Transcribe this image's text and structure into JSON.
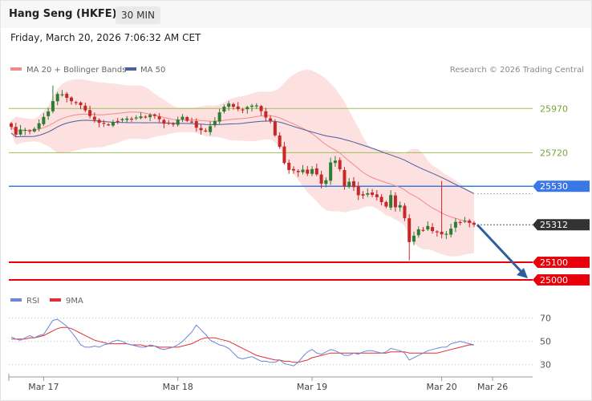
{
  "header": {
    "title": "Hang Seng (HKFE)",
    "timeframe": "30 MIN",
    "datetime": "Friday, March 20, 2026 7:06:32 AM CET"
  },
  "legend": {
    "ma20": "MA 20 + Bollinger Bands",
    "ma50": "MA 50",
    "credit": "Research © 2026 Trading Central",
    "rsi": "RSI",
    "rsi_ma": "9MA"
  },
  "colors": {
    "ma20": "#f08a8a",
    "ma50": "#4a5f9c",
    "band_fill": "#fde0e0",
    "up": "#2e7d32",
    "down": "#c62828",
    "pivot": "#3a78e8",
    "support": "#e8000b",
    "resistance": "#9bc15a",
    "last": "#333333",
    "arrow": "#2f5e9e",
    "rsi": "#6a86d8",
    "rsi_ma": "#e32f2f"
  },
  "chart_data": [
    {
      "type": "candlestick",
      "title": "",
      "x_labels": [
        "Mar 17",
        "Mar 18",
        "Mar 19",
        "Mar 20",
        "Mar 26"
      ],
      "ylim": [
        24950,
        26130
      ],
      "levels": [
        {
          "value": 25970,
          "label": "25970",
          "kind": "resistance"
        },
        {
          "value": 25720,
          "label": "25720",
          "kind": "resistance"
        },
        {
          "value": 25530,
          "label": "25530",
          "kind": "pivot"
        },
        {
          "value": 25312,
          "label": "25312",
          "kind": "last"
        },
        {
          "value": 25100,
          "label": "25100",
          "kind": "support"
        },
        {
          "value": 25000,
          "label": "25000",
          "kind": "support"
        }
      ],
      "series": [
        {
          "name": "MA 20 + Bollinger Bands"
        },
        {
          "name": "MA 50"
        }
      ],
      "closes": [
        25866,
        25822,
        25851,
        25849,
        25841,
        25855,
        25886,
        25922,
        25953,
        26012,
        26052,
        26050,
        26030,
        26011,
        26004,
        25989,
        25959,
        25927,
        25905,
        25889,
        25884,
        25879,
        25894,
        25898,
        25910,
        25913,
        25912,
        25919,
        25925,
        25920,
        25934,
        25927,
        25909,
        25884,
        25885,
        25881,
        25907,
        25923,
        25900,
        25895,
        25861,
        25847,
        25841,
        25870,
        25899,
        25948,
        25980,
        25998,
        25980,
        25966,
        25963,
        25978,
        25986,
        25987,
        25955,
        25919,
        25900,
        25818,
        25753,
        25661,
        25622,
        25619,
        25610,
        25624,
        25601,
        25627,
        25597,
        25544,
        25564,
        25665,
        25675,
        25626,
        25529,
        25555,
        25525,
        25479,
        25477,
        25490,
        25481,
        25468,
        25440,
        25415,
        25480,
        25411,
        25423,
        25350,
        25214,
        25250,
        25286,
        25280,
        25305,
        25276,
        25271,
        25258,
        25261,
        25290,
        25328,
        25325,
        25335,
        25323,
        25312
      ],
      "price_range": [
        25110,
        26100
      ]
    },
    {
      "type": "line",
      "title": "",
      "series": [
        {
          "name": "RSI"
        },
        {
          "name": "9MA"
        }
      ],
      "yticks": [
        30,
        50,
        70
      ],
      "ylim": [
        25,
        78
      ],
      "rsi": [
        54,
        52,
        51,
        53,
        55,
        53,
        55,
        56,
        62,
        68,
        69,
        66,
        63,
        58,
        53,
        47,
        45,
        45,
        46,
        45,
        47,
        48,
        50,
        51,
        50,
        48,
        47,
        46,
        45,
        45,
        47,
        46,
        44,
        43,
        44,
        45,
        47,
        50,
        54,
        58,
        64,
        60,
        56,
        51,
        49,
        47,
        46,
        44,
        40,
        36,
        35,
        36,
        37,
        35,
        33,
        33,
        32,
        32,
        34,
        31,
        30,
        29,
        32,
        37,
        41,
        43,
        40,
        39,
        41,
        43,
        42,
        40,
        38,
        38,
        40,
        39,
        41,
        42,
        42,
        41,
        40,
        41,
        44,
        43,
        42,
        40,
        34,
        36,
        38,
        40,
        42,
        43,
        44,
        45,
        45,
        48,
        49,
        50,
        49,
        48,
        47
      ],
      "ma9": [
        52,
        52,
        52,
        52,
        53,
        53,
        54,
        55,
        57,
        59,
        61,
        62,
        62,
        61,
        59,
        57,
        55,
        53,
        51,
        50,
        49,
        48,
        48,
        48,
        48,
        48,
        47,
        47,
        47,
        46,
        46,
        46,
        45,
        45,
        45,
        45,
        45,
        46,
        47,
        48,
        50,
        52,
        53,
        53,
        53,
        52,
        51,
        50,
        48,
        46,
        44,
        42,
        40,
        38,
        37,
        36,
        35,
        34,
        34,
        33,
        33,
        32,
        32,
        33,
        34,
        36,
        37,
        38,
        39,
        40,
        40,
        40,
        40,
        40,
        40,
        40,
        40,
        40,
        40,
        40,
        40,
        40,
        41,
        41,
        41,
        41,
        40,
        40,
        40,
        40,
        40,
        40,
        40,
        41,
        42,
        43,
        44,
        45,
        46,
        47,
        47
      ]
    }
  ]
}
